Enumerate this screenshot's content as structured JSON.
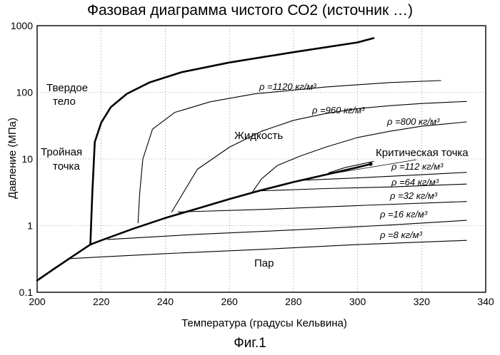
{
  "chart_data": {
    "type": "line",
    "title": "Фазовая диаграмма чистого СО2 (источник …)",
    "xlabel": "Температура (градусы Кельвина)",
    "ylabel": "Давление (МПа)",
    "xlim": [
      200,
      340
    ],
    "ylim": [
      0.1,
      1000
    ],
    "y_scale": "log",
    "x_ticks": [
      "200",
      "220",
      "240",
      "260",
      "280",
      "300",
      "320",
      "340"
    ],
    "y_ticks": [
      "0.1",
      "1",
      "10",
      "100",
      "1000"
    ],
    "grid": true,
    "region_labels": {
      "solid_1": "Твердое",
      "solid_2": "тело",
      "triple_1": "Тройная",
      "triple_2": "точка",
      "liquid": "Жидкость",
      "critical": "Критическая точка",
      "vapor": "Пар"
    },
    "series": [
      {
        "role": "sublimation",
        "bold": true,
        "x": [
          200,
          205,
          210,
          214,
          216.6
        ],
        "y": [
          0.15,
          0.22,
          0.32,
          0.43,
          0.52
        ]
      },
      {
        "role": "melting",
        "bold": true,
        "x": [
          216.6,
          217.2,
          218,
          220,
          223,
          228,
          235,
          245,
          260,
          280,
          300,
          305
        ],
        "y": [
          0.52,
          3,
          18,
          35,
          60,
          95,
          140,
          200,
          280,
          400,
          560,
          650
        ]
      },
      {
        "role": "vaporization",
        "bold": true,
        "x": [
          216.6,
          220,
          230,
          240,
          250,
          260,
          270,
          280,
          290,
          300,
          304.1
        ],
        "y": [
          0.52,
          0.6,
          0.9,
          1.3,
          1.8,
          2.5,
          3.4,
          4.5,
          5.8,
          7.5,
          8.4
        ]
      },
      {
        "role": "isochore",
        "label": "ρ =1120 кг/м³",
        "x": [
          231.5,
          232,
          233,
          236,
          243,
          254,
          268,
          290,
          310,
          326
        ],
        "y": [
          1.1,
          3,
          10,
          28,
          50,
          72,
          95,
          120,
          140,
          150
        ]
      },
      {
        "role": "isochore",
        "label": "ρ =960 кг/м³",
        "x": [
          242,
          250,
          260,
          270,
          280,
          290,
          300,
          310,
          320,
          334
        ],
        "y": [
          1.6,
          7,
          15,
          26,
          38,
          48,
          57,
          63,
          68,
          73
        ]
      },
      {
        "role": "isochore",
        "label": "ρ =800 кг/м³",
        "x": [
          267,
          270,
          275,
          282,
          290,
          300,
          310,
          320,
          334
        ],
        "y": [
          3.1,
          5,
          8,
          11,
          15,
          21,
          26,
          31,
          36
        ]
      },
      {
        "role": "isochore",
        "label": "ρ =112 кг/м³",
        "x": [
          291,
          296,
          305
        ],
        "y": [
          6.2,
          7.4,
          9.2
        ]
      },
      {
        "role": "isochore",
        "label": "ρ =64 кг/м³",
        "x": [
          283,
          300,
          320,
          334
        ],
        "y": [
          4.8,
          5.2,
          5.8,
          6.3
        ]
      },
      {
        "role": "isochore",
        "label": "ρ =32 кг/м³",
        "x": [
          268,
          290,
          310,
          334
        ],
        "y": [
          3.3,
          3.6,
          3.8,
          4.2
        ]
      },
      {
        "role": "isochore",
        "label": "ρ =16 кг/м³",
        "x": [
          244,
          270,
          300,
          334
        ],
        "y": [
          1.6,
          1.75,
          2.0,
          2.3
        ]
      },
      {
        "role": "isochore",
        "label": "ρ =8 кг/м³",
        "x": [
          222,
          250,
          280,
          310,
          334
        ],
        "y": [
          0.62,
          0.74,
          0.86,
          1.02,
          1.2
        ]
      },
      {
        "role": "isochore",
        "x": [
          210,
          240,
          270,
          300,
          334
        ],
        "y": [
          0.32,
          0.38,
          0.44,
          0.52,
          0.6
        ]
      }
    ]
  },
  "figure_caption": "Фиг.1"
}
